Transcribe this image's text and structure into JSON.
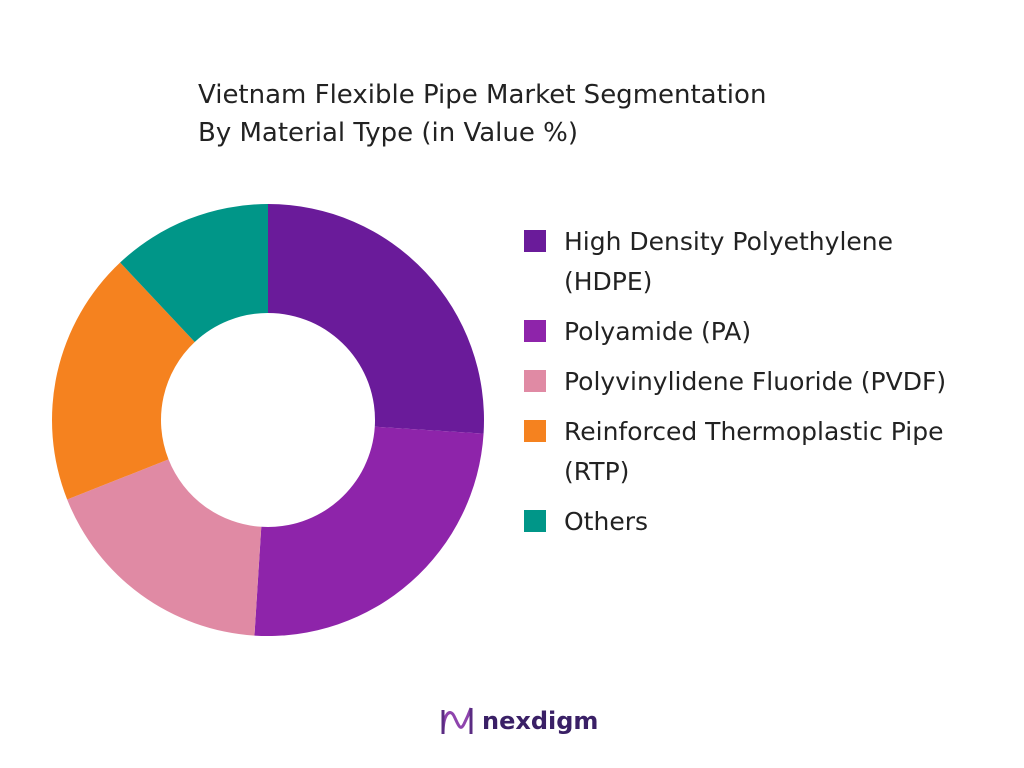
{
  "chart_data": {
    "type": "donut",
    "title": "Vietnam Flexible Pipe Market Segmentation",
    "subtitle": "By Material Type (in Value %)",
    "series": [
      {
        "name": "High Density Polyethylene (HDPE)",
        "color": "#6a1b9a",
        "value": 26
      },
      {
        "name": "Polyamide (PA)",
        "color": "#8e24aa",
        "value": 25
      },
      {
        "name": "Polyvinylidene Fluoride (PVDF)",
        "color": "#e08aa4",
        "value": 18
      },
      {
        "name": "Reinforced Thermoplastic Pipe (RTP)",
        "color": "#f5821f",
        "value": 19
      },
      {
        "name": "Others",
        "color": "#009688",
        "value": 12
      }
    ]
  },
  "logo": "nexdigm"
}
